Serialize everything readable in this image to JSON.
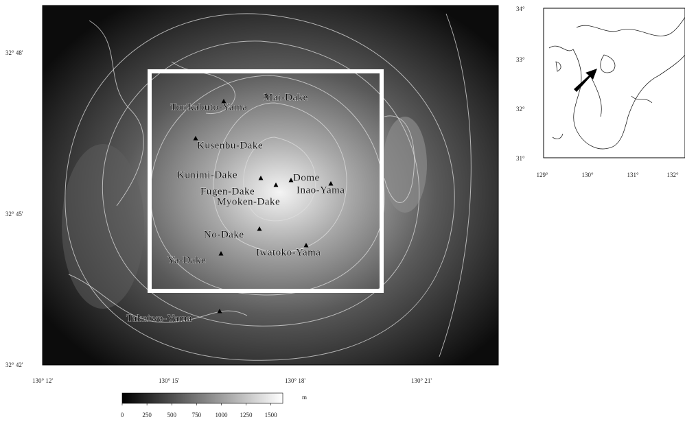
{
  "map": {
    "peaks": [
      "Mai-Dake",
      "Torikabuto-Yama",
      "Kusenbu-Dake",
      "Kunimi-Dake",
      "Dome",
      "Fugen-Dake",
      "Inao-Yama",
      "Myoken-Dake",
      "No-Dake",
      "Iwatoko-Yama",
      "Ya-Dake",
      "Takaiwa-Yama"
    ],
    "lat_labels": [
      "32° 48'",
      "32° 45'",
      "32° 42'"
    ],
    "lon_labels": [
      "130° 12'",
      "130° 15'",
      "130° 18'",
      "130° 21'"
    ]
  },
  "colorbar": {
    "unit": "m",
    "range": [
      0,
      1620
    ],
    "ticks": [
      0,
      250,
      500,
      750,
      1000,
      1250,
      1500
    ]
  },
  "inset": {
    "lat_labels": [
      "34°",
      "33°",
      "32°",
      "31°"
    ],
    "lon_labels": [
      "129°",
      "130°",
      "131°",
      "132°"
    ]
  }
}
